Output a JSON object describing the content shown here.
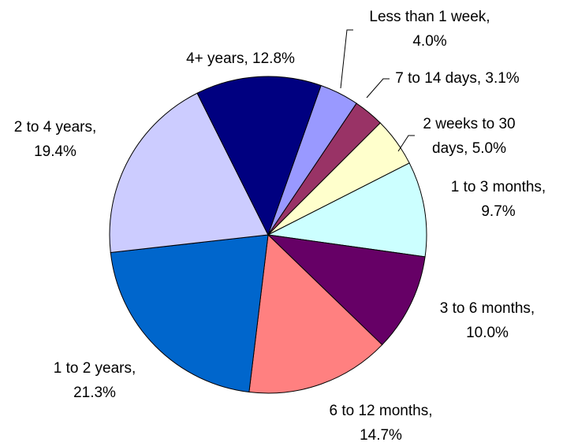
{
  "chart_data": {
    "type": "pie",
    "labels": [
      [
        "Less than 1 week,",
        "4.0%"
      ],
      [
        "7 to 14 days, 3.1%"
      ],
      [
        "2 weeks to 30",
        "days, 5.0%"
      ],
      [
        "1 to 3 months,",
        "9.7%"
      ],
      [
        "3 to 6 months,",
        "10.0%"
      ],
      [
        "6 to 12 months,",
        "14.7%"
      ],
      [
        "1 to 2 years,",
        "21.3%"
      ],
      [
        "2 to 4 years,",
        "19.4%"
      ],
      [
        "4+ years, 12.8%"
      ]
    ],
    "values": [
      4.0,
      3.1,
      5.0,
      9.7,
      10.0,
      14.7,
      21.3,
      19.4,
      12.8
    ],
    "colors": [
      "#9999ff",
      "#993366",
      "#ffffcc",
      "#ccffff",
      "#660066",
      "#ff8080",
      "#0066cc",
      "#ccccff",
      "#000080"
    ]
  }
}
